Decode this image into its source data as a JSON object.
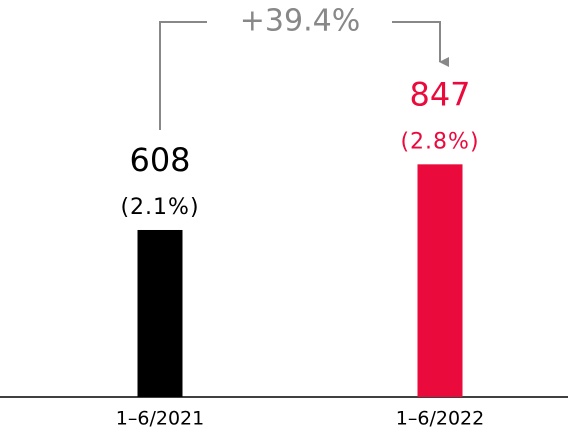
{
  "chart_data": {
    "type": "bar",
    "annotation": "+39.4%",
    "categories": [
      "1–6/2021",
      "1–6/2022"
    ],
    "values": [
      608,
      847
    ],
    "shares": [
      2.1,
      2.8
    ],
    "share_labels": [
      "(2.1%)",
      "(2.8%)"
    ],
    "colors": [
      "#000000",
      "#ea0a3c"
    ]
  }
}
